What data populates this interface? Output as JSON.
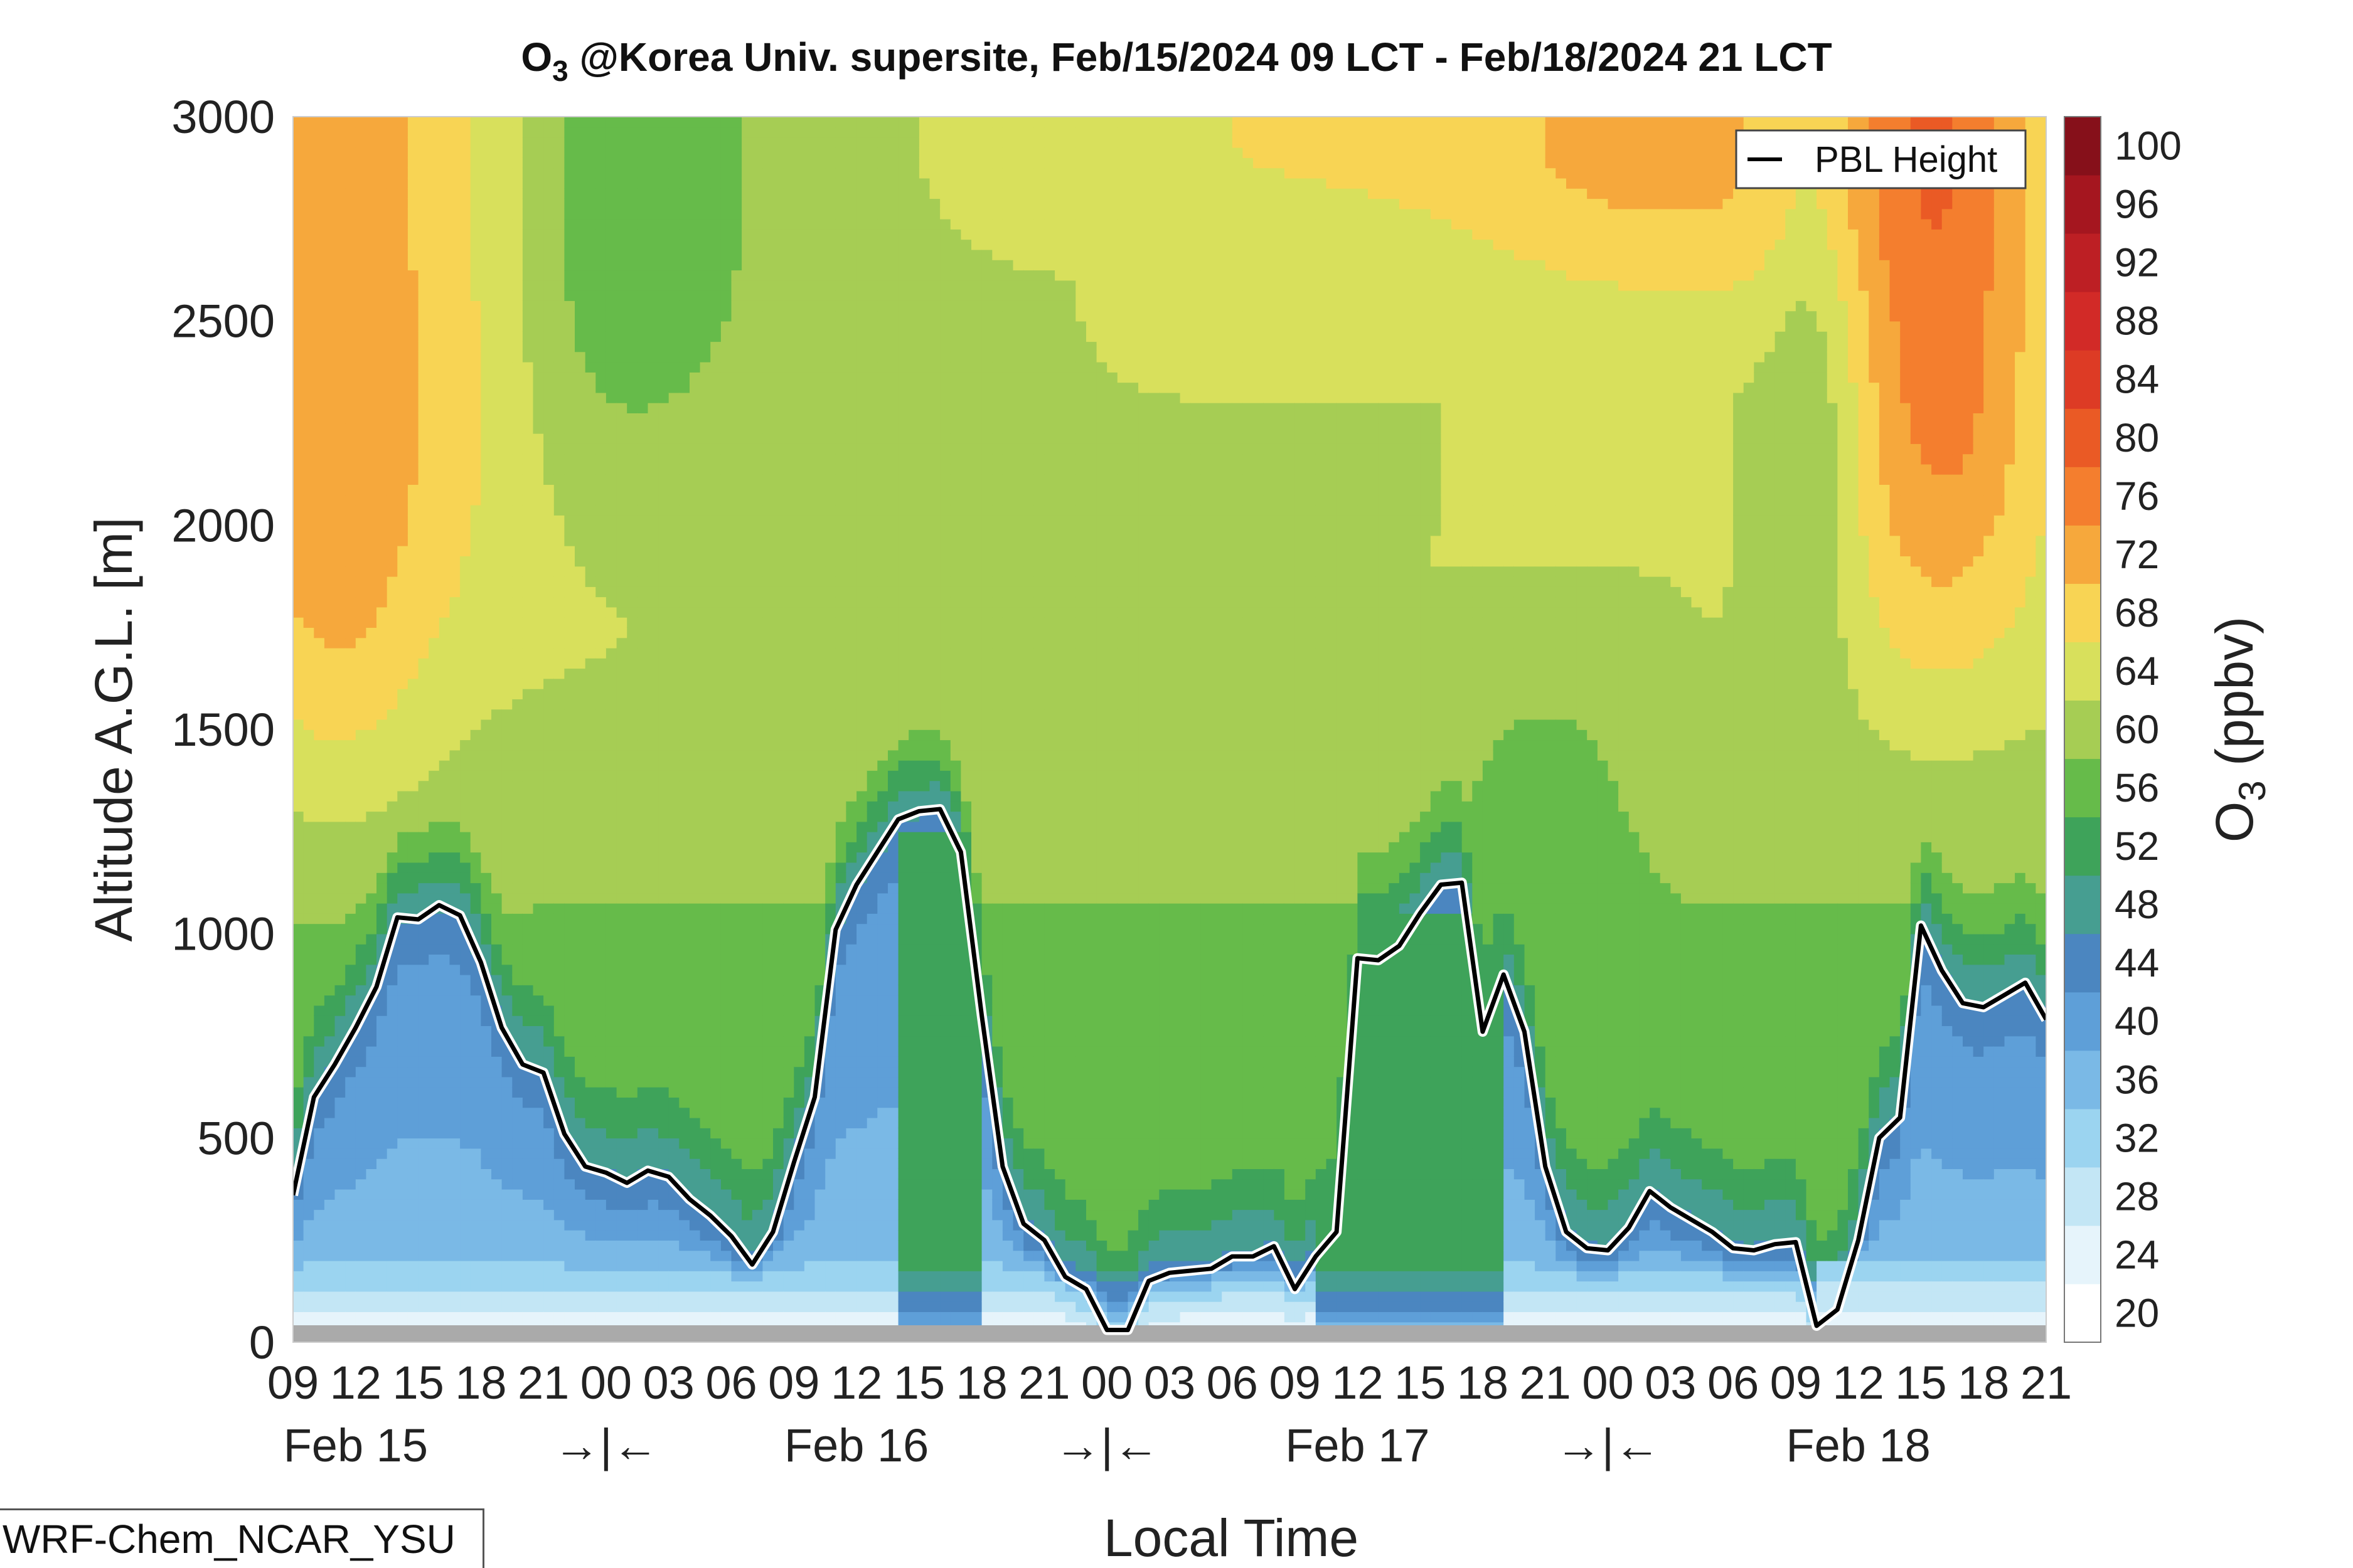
{
  "title_main": "O",
  "title_sub": "3",
  "title_rest": " @Korea Univ. supersite, Feb/15/2024 09 LCT - Feb/18/2024 21 LCT",
  "model_label": "WRF-Chem_NCAR_YSU",
  "chart_data": {
    "type": "contour",
    "title": "O3 @Korea Univ. supersite, Feb/15/2024 09 LCT - Feb/18/2024 21 LCT",
    "xlabel": "Local Time",
    "ylabel": "Altitude A.G.L. [m]",
    "colorbar_label_main": "O",
    "colorbar_label_sub": "3",
    "colorbar_label_rest": " (ppbv)",
    "ylim": [
      0,
      3000
    ],
    "xlim_hours": [
      0,
      84
    ],
    "yticks": [
      0,
      500,
      1000,
      1500,
      2000,
      2500,
      3000
    ],
    "ytick_labels": [
      "0",
      "500",
      "1000",
      "1500",
      "2000",
      "2500",
      "3000"
    ],
    "xtick_labels": [
      "09",
      "12",
      "15",
      "18",
      "21",
      "00",
      "03",
      "06",
      "09",
      "12",
      "15",
      "18",
      "21",
      "00",
      "03",
      "06",
      "09",
      "12",
      "15",
      "18",
      "21",
      "00",
      "03",
      "06",
      "09",
      "12",
      "15",
      "18",
      "21"
    ],
    "day_labels": [
      {
        "text": "Feb 15",
        "hour": 3
      },
      {
        "text": "Feb 16",
        "hour": 27
      },
      {
        "text": "Feb 17",
        "hour": 51
      },
      {
        "text": "Feb 18",
        "hour": 75
      }
    ],
    "midnight_markers": [
      {
        "text": "→|←",
        "hour": 15
      },
      {
        "text": "→|←",
        "hour": 39
      },
      {
        "text": "→|←",
        "hour": 63
      }
    ],
    "colorbar_levels": [
      20,
      24,
      28,
      32,
      36,
      40,
      44,
      48,
      52,
      56,
      60,
      64,
      68,
      72,
      76,
      80,
      84,
      88,
      92,
      96,
      100
    ],
    "colorbar_colors": [
      "#ffffff",
      "#e6f4fb",
      "#c3e6f5",
      "#9bd4f0",
      "#7ab9e6",
      "#5e9fd8",
      "#4b86c0",
      "#469e91",
      "#3ea35a",
      "#66bb4a",
      "#a6cd54",
      "#d8e05c",
      "#f8d454",
      "#f6a83c",
      "#f47e2e",
      "#ea5a25",
      "#dd3b25",
      "#d22a27",
      "#bd1f24",
      "#a5161f",
      "#86101a"
    ],
    "legend": {
      "text": "PBL Height",
      "position": "top-right"
    },
    "series": [
      {
        "name": "PBL Height",
        "x": [
          0,
          1,
          2,
          3,
          4,
          5,
          6,
          7,
          8,
          9,
          10,
          11,
          12,
          13,
          14,
          15,
          16,
          17,
          18,
          19,
          20,
          21,
          22,
          23,
          24,
          25,
          26,
          27,
          28,
          29,
          30,
          31,
          32,
          33,
          34,
          35,
          36,
          37,
          38,
          39,
          40,
          41,
          42,
          43,
          44,
          45,
          46,
          47,
          48,
          49,
          50,
          51,
          52,
          53,
          54,
          55,
          56,
          57,
          58,
          59,
          60,
          61,
          62,
          63,
          64,
          65,
          66,
          67,
          68,
          69,
          70,
          71,
          72,
          73,
          74,
          75,
          76,
          77,
          78,
          79,
          80,
          81,
          82,
          83,
          84
        ],
        "y": [
          360,
          600,
          680,
          770,
          870,
          1040,
          1035,
          1070,
          1045,
          930,
          770,
          680,
          660,
          510,
          430,
          415,
          390,
          420,
          405,
          350,
          310,
          260,
          190,
          270,
          440,
          600,
          1010,
          1120,
          1200,
          1280,
          1300,
          1305,
          1200,
          800,
          430,
          290,
          250,
          160,
          130,
          30,
          30,
          150,
          170,
          175,
          180,
          210,
          210,
          235,
          130,
          210,
          270,
          940,
          935,
          970,
          1050,
          1120,
          1125,
          760,
          900,
          760,
          430,
          270,
          230,
          225,
          280,
          370,
          330,
          300,
          270,
          230,
          225,
          240,
          245,
          40,
          80,
          250,
          500,
          550,
          1020,
          910,
          830,
          820,
          850,
          880,
          790
        ]
      }
    ]
  }
}
